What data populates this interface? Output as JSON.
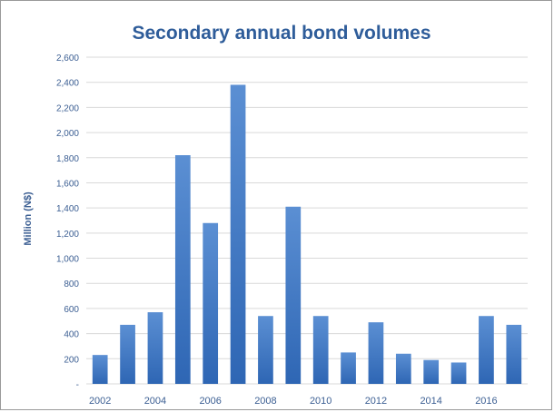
{
  "chart_data": {
    "type": "bar",
    "title": "Secondary annual bond volumes",
    "xlabel": "",
    "ylabel": "Million (N$)",
    "categories": [
      "2002",
      "2003",
      "2004",
      "2005",
      "2006",
      "2007",
      "2008",
      "2009",
      "2010",
      "2011",
      "2012",
      "2013",
      "2014",
      "2015",
      "2016",
      "2017"
    ],
    "x_tick_labels": [
      "2002",
      "",
      "2004",
      "",
      "2006",
      "",
      "2008",
      "",
      "2010",
      "",
      "2012",
      "",
      "2014",
      "",
      "2016",
      ""
    ],
    "values": [
      230,
      470,
      570,
      1820,
      1280,
      2380,
      540,
      1410,
      540,
      250,
      490,
      240,
      190,
      170,
      540,
      470
    ],
    "ylim": [
      0,
      2600
    ],
    "y_ticks": [
      0,
      200,
      400,
      600,
      800,
      1000,
      1200,
      1400,
      1600,
      1800,
      2000,
      2200,
      2400,
      2600
    ],
    "y_tick_labels": [
      "-",
      "200",
      "400",
      "600",
      "800",
      "1,000",
      "1,200",
      "1,400",
      "1,600",
      "1,800",
      "2,000",
      "2,200",
      "2,400",
      "2,600"
    ],
    "grid": true,
    "legend": "none",
    "colors": {
      "bar_top": "#5b8fd3",
      "bar_bottom": "#2e66b4",
      "title": "#2f5d9a",
      "axis_text": "#3c5f93",
      "grid": "#d9d9d9"
    }
  }
}
